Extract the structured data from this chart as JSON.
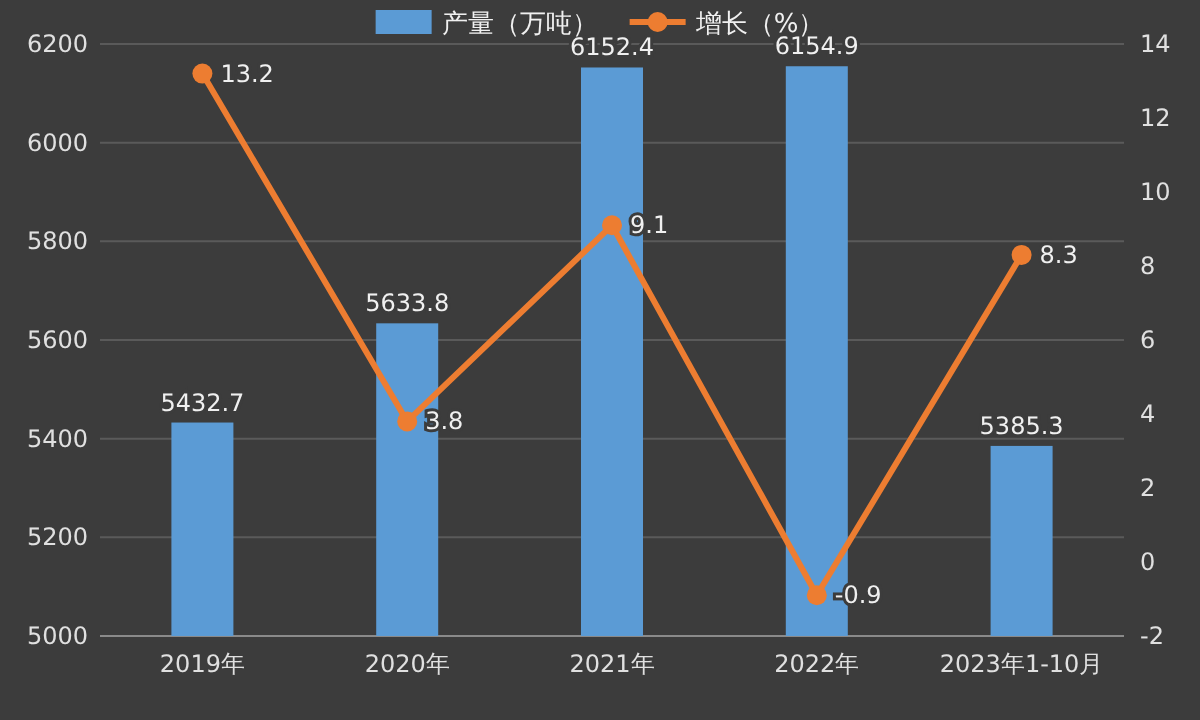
{
  "chart_data": {
    "type": "bar",
    "categories": [
      "2019年",
      "2020年",
      "2021年",
      "2022年",
      "2023年1-10月"
    ],
    "series": [
      {
        "name": "产量（万吨）",
        "color": "#5b9bd5",
        "values": [
          5432.7,
          5633.8,
          6152.4,
          6154.9,
          5385.3
        ]
      },
      {
        "name": "增长（%）",
        "type": "line",
        "axis": "y2",
        "color": "#ed7d31",
        "values": [
          13.2,
          3.8,
          9.1,
          -0.9,
          8.3
        ]
      }
    ],
    "ylim": [
      5000,
      6200
    ],
    "yticks": [
      5000,
      5200,
      5400,
      5600,
      5800,
      6000,
      6200
    ],
    "y2lim": [
      -2,
      14
    ],
    "y2ticks": [
      -2,
      0,
      2,
      4,
      6,
      8,
      10,
      12,
      14
    ],
    "data_labels": true,
    "grid": "y",
    "legend": "top",
    "marker": "circle"
  }
}
